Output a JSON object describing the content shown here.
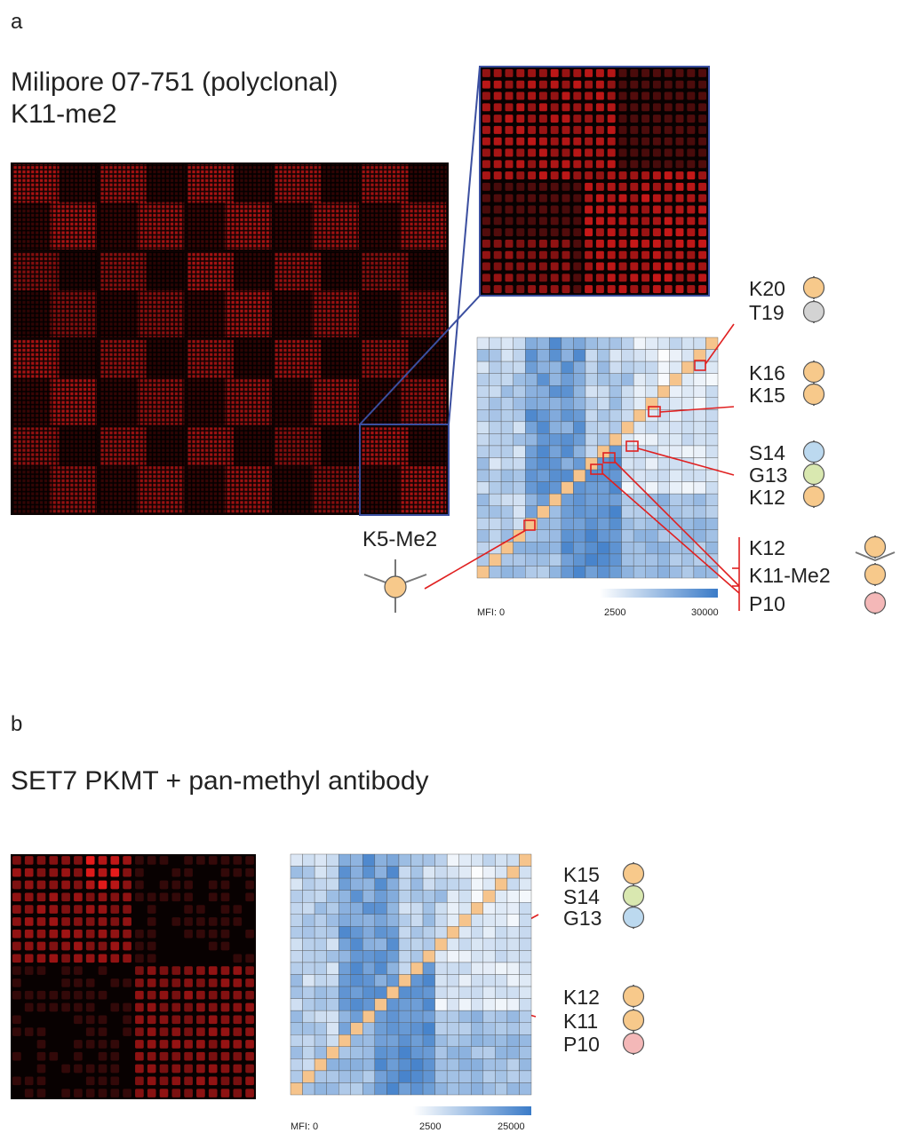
{
  "panel_a": {
    "label": "a",
    "title": [
      "Milipore 07-751 (polyclonal)",
      "K11-me2"
    ],
    "site_label": "K5-Me2",
    "residues": [
      "K20",
      "T19",
      "K16",
      "K15",
      "S14",
      "G13",
      "K12",
      "K12",
      "K11-Me2",
      "P10"
    ],
    "colorbar": [
      "MFI: 0",
      "2500",
      "30000"
    ]
  },
  "panel_b": {
    "label": "b",
    "title": "SET7 PKMT + pan-methyl antibody",
    "residues": [
      "K15",
      "S14",
      "G13",
      "K12",
      "K11",
      "P10"
    ],
    "colorbar": [
      "MFI: 0",
      "2500",
      "25000"
    ]
  }
}
